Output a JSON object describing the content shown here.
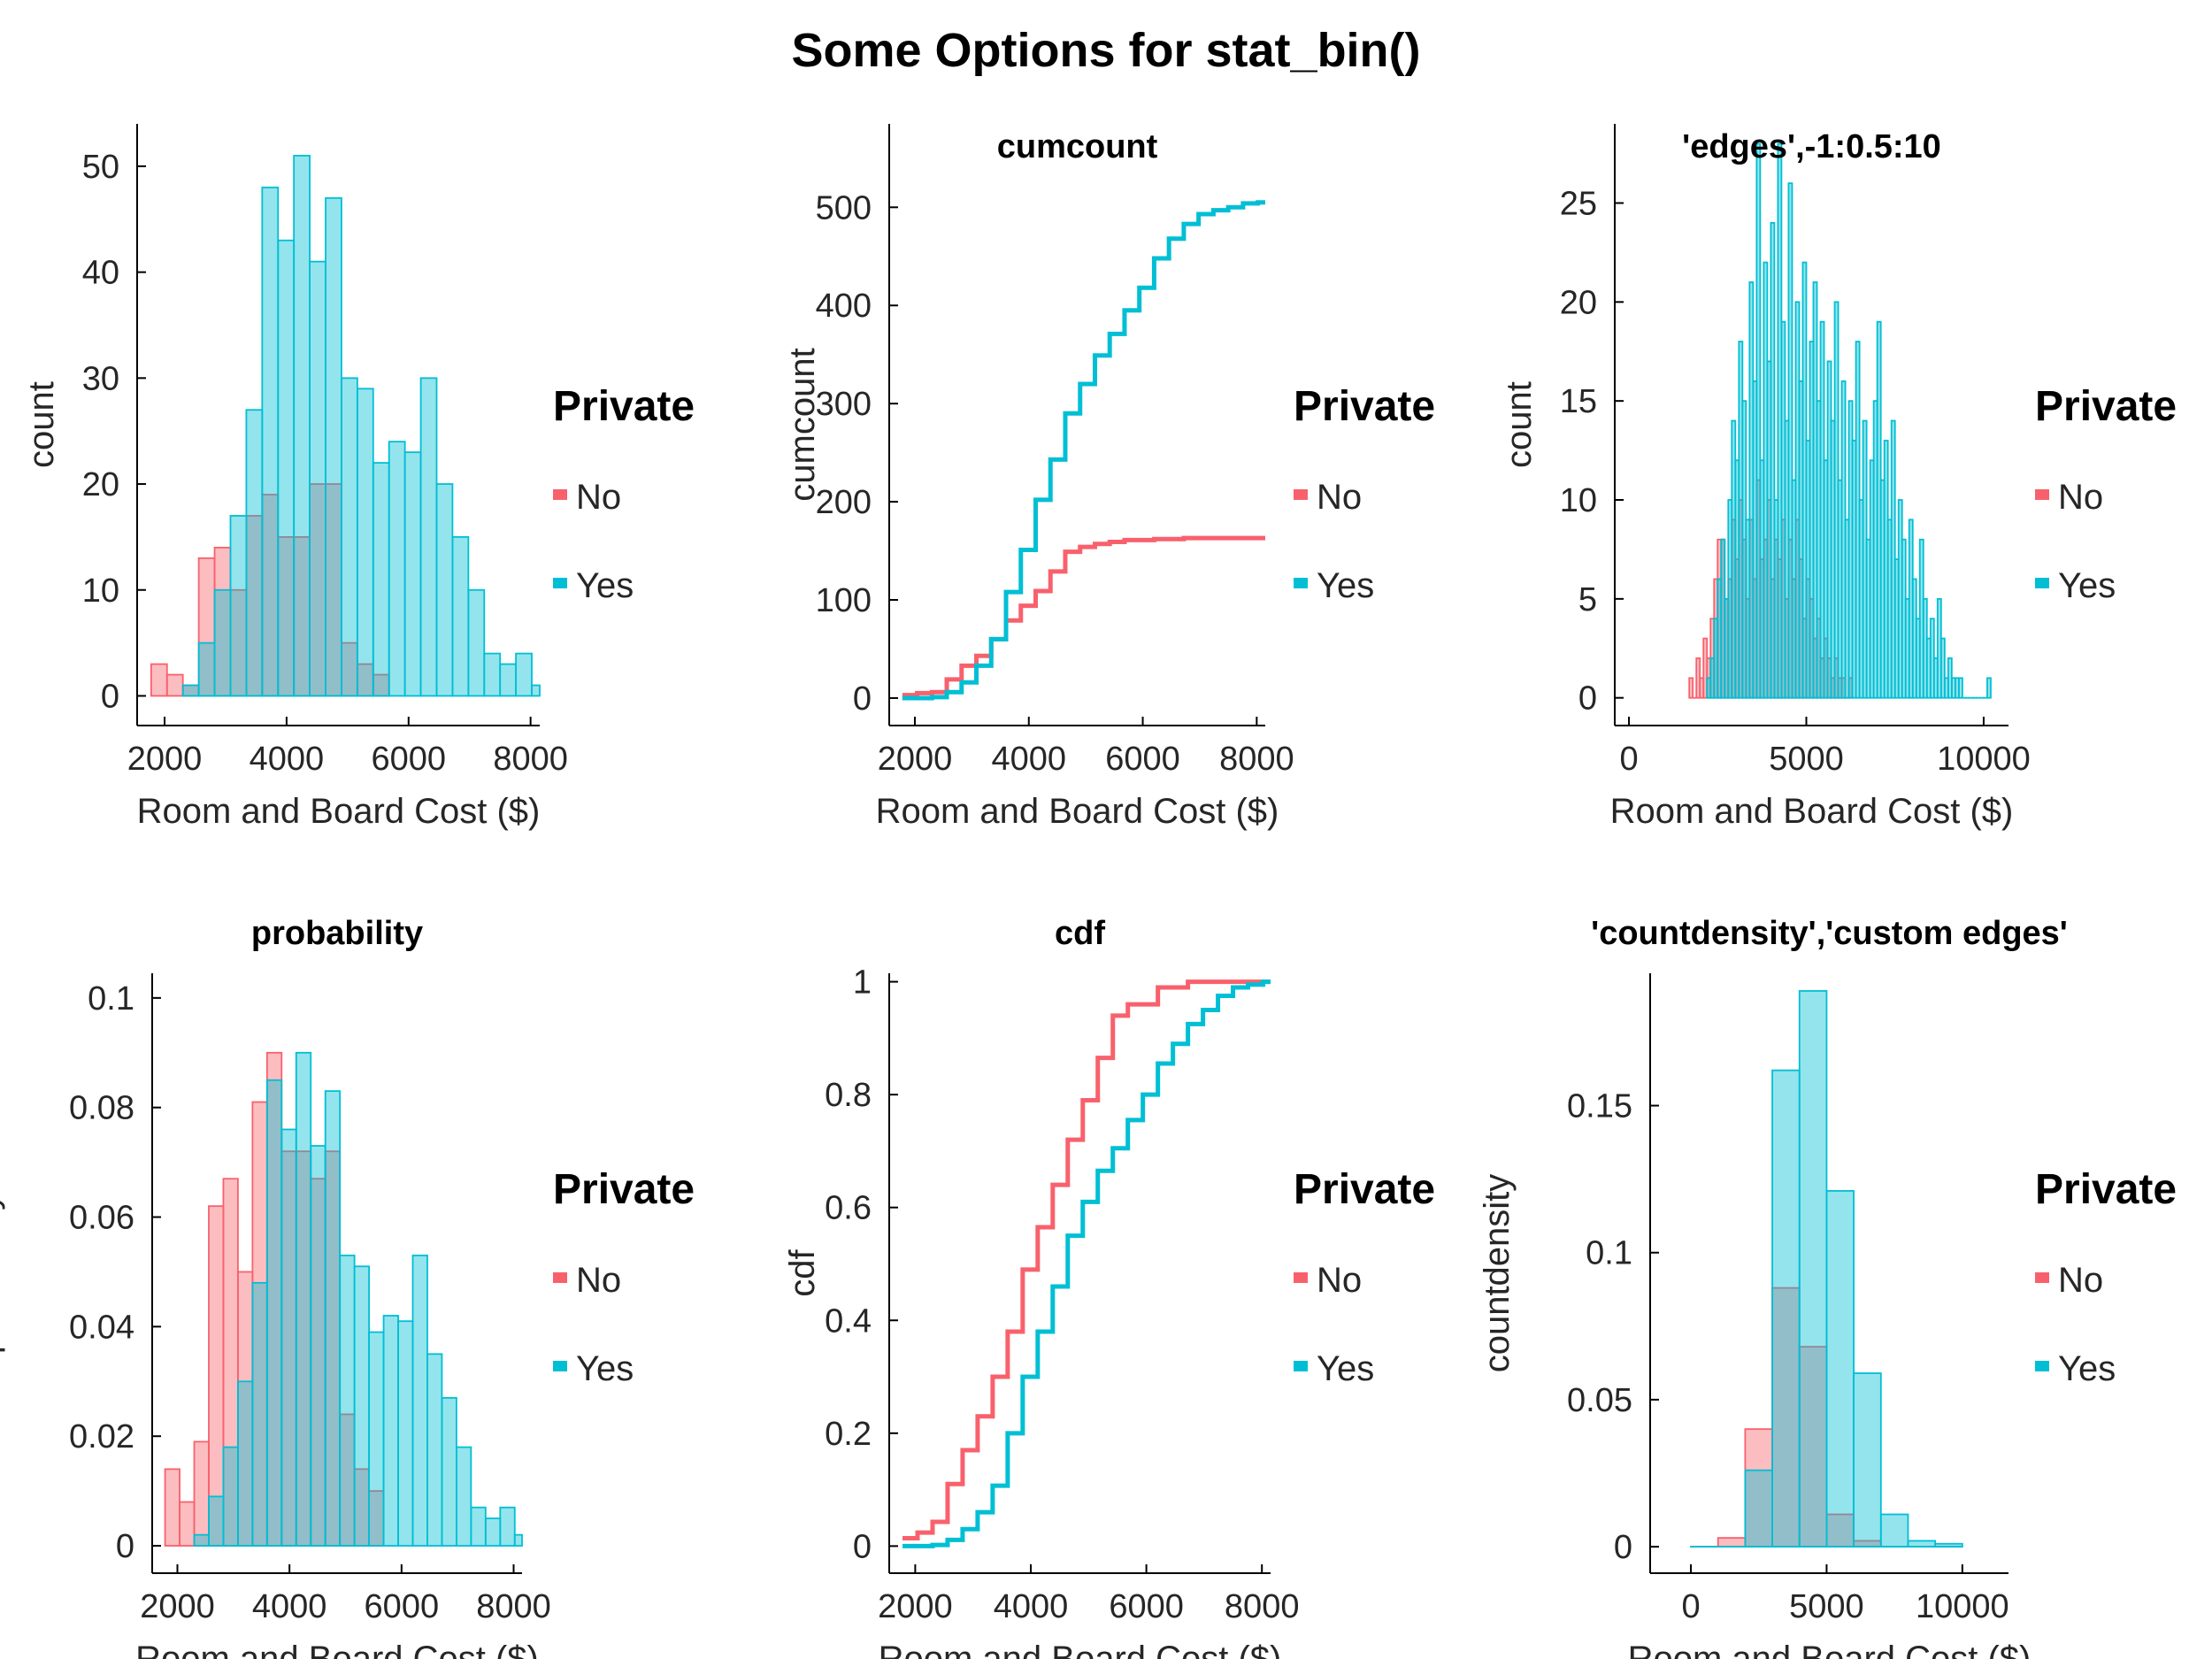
{
  "figure": {
    "title": "Some Options for stat_bin()"
  },
  "colors": {
    "no": "#f8616c",
    "yes": "#00bfd4",
    "axis": "#000000",
    "text": "#262626"
  },
  "chart_data": [
    {
      "type": "bar",
      "subplot": 1,
      "title": "",
      "xlabel": "Room and Board Cost ($)",
      "ylabel": "count",
      "xlim": [
        1550,
        8150
      ],
      "ylim": [
        -2.8,
        54
      ],
      "xticks": [
        2000,
        4000,
        6000,
        8000
      ],
      "yticks": [
        0,
        10,
        20,
        30,
        40,
        50
      ],
      "legend": {
        "title": "Private",
        "entries": [
          "No",
          "Yes"
        ],
        "position": "right"
      },
      "series": [
        {
          "name": "No",
          "type": "histogram",
          "edges": [
            1780,
            2040,
            2300,
            2560,
            2820,
            3080,
            3340,
            3600,
            3860,
            4120,
            4380,
            4640,
            4900,
            5160,
            5420,
            5680
          ],
          "values": [
            3,
            2,
            1,
            13,
            14,
            10,
            17,
            19,
            15,
            15,
            20,
            20,
            5,
            3,
            2
          ]
        },
        {
          "name": "Yes",
          "type": "histogram",
          "edges": [
            2300,
            2560,
            2820,
            3080,
            3340,
            3600,
            3860,
            4120,
            4380,
            4640,
            4900,
            5160,
            5420,
            5680,
            5940,
            6200,
            6460,
            6720,
            6980,
            7240,
            7500,
            7760,
            8020,
            8150
          ],
          "values": [
            1,
            5,
            10,
            17,
            27,
            48,
            43,
            51,
            41,
            47,
            30,
            29,
            22,
            24,
            23,
            30,
            20,
            15,
            10,
            4,
            3,
            4,
            1
          ]
        }
      ]
    },
    {
      "type": "line",
      "subplot": 2,
      "title": "cumcount",
      "xlabel": "Room and Board Cost ($)",
      "ylabel": "cumcount",
      "xlim": [
        1550,
        8150
      ],
      "ylim": [
        -28,
        585
      ],
      "xticks": [
        2000,
        4000,
        6000,
        8000
      ],
      "yticks": [
        0,
        100,
        200,
        300,
        400,
        500
      ],
      "legend": {
        "title": "Private",
        "entries": [
          "No",
          "Yes"
        ],
        "position": "right"
      },
      "series": [
        {
          "name": "No",
          "type": "step",
          "x": [
            1780,
            2040,
            2300,
            2560,
            2820,
            3080,
            3340,
            3600,
            3860,
            4120,
            4380,
            4640,
            4900,
            5160,
            5420,
            5680,
            6200,
            6720,
            8150
          ],
          "y": [
            3,
            5,
            6,
            19,
            33,
            43,
            60,
            79,
            94,
            109,
            129,
            149,
            154,
            157,
            159,
            161,
            162,
            163,
            163
          ]
        },
        {
          "name": "Yes",
          "type": "step",
          "x": [
            1780,
            2300,
            2560,
            2820,
            3080,
            3340,
            3600,
            3860,
            4120,
            4380,
            4640,
            4900,
            5160,
            5420,
            5680,
            5940,
            6200,
            6460,
            6720,
            6980,
            7240,
            7500,
            7760,
            8020,
            8150
          ],
          "y": [
            0,
            1,
            6,
            16,
            33,
            60,
            108,
            151,
            202,
            243,
            290,
            320,
            349,
            371,
            395,
            418,
            448,
            468,
            483,
            493,
            497,
            500,
            504,
            505,
            505
          ]
        }
      ]
    },
    {
      "type": "bar",
      "subplot": 3,
      "title": "'edges',-1:0.5:10",
      "xlabel": "Room and Board Cost ($)",
      "ylabel": "count",
      "xlim": [
        -400,
        10700
      ],
      "ylim": [
        -1.4,
        29
      ],
      "xticks": [
        0,
        5000,
        10000
      ],
      "yticks": [
        0,
        5,
        10,
        15,
        20,
        25
      ],
      "legend": {
        "title": "Private",
        "entries": [
          "No",
          "Yes"
        ],
        "position": "right"
      },
      "series": [
        {
          "name": "No",
          "type": "histogram",
          "x0": 1700,
          "width": 100,
          "values": [
            1,
            0,
            2,
            1,
            3,
            2,
            4,
            6,
            8,
            8,
            5,
            6,
            9,
            7,
            10,
            8,
            5,
            9,
            6,
            11,
            7,
            8,
            10,
            6,
            8,
            7,
            9,
            5,
            8,
            6,
            9,
            7,
            4,
            6,
            5,
            3,
            4,
            2,
            3,
            2,
            1,
            2,
            1,
            1,
            0,
            1
          ]
        },
        {
          "name": "Yes",
          "type": "histogram",
          "x0": 2200,
          "width": 100,
          "values": [
            1,
            2,
            4,
            6,
            8,
            5,
            10,
            14,
            12,
            18,
            15,
            9,
            21,
            16,
            28,
            12,
            22,
            17,
            24,
            10,
            28,
            19,
            14,
            26,
            11,
            20,
            16,
            22,
            13,
            18,
            21,
            15,
            19,
            12,
            17,
            14,
            20,
            11,
            16,
            9,
            15,
            13,
            18,
            10,
            14,
            8,
            12,
            15,
            19,
            11,
            13,
            9,
            14,
            7,
            10,
            8,
            5,
            9,
            6,
            4,
            8,
            5,
            3,
            4,
            2,
            5,
            3,
            1,
            2,
            1,
            1,
            1,
            0,
            0,
            0,
            0,
            0,
            0,
            0,
            1
          ]
        }
      ]
    },
    {
      "type": "bar",
      "subplot": 4,
      "title": "probability",
      "xlabel": "Room and Board Cost ($)",
      "ylabel": "probability",
      "xlim": [
        1550,
        8150
      ],
      "ylim": [
        -0.005,
        0.1045
      ],
      "xticks": [
        2000,
        4000,
        6000,
        8000
      ],
      "yticks": [
        0,
        0.02,
        0.04,
        0.06,
        0.08,
        0.1
      ],
      "legend": {
        "title": "Private",
        "entries": [
          "No",
          "Yes"
        ],
        "position": "right"
      },
      "series": [
        {
          "name": "No",
          "type": "histogram",
          "edges": [
            1780,
            2040,
            2300,
            2560,
            2820,
            3080,
            3340,
            3600,
            3860,
            4120,
            4380,
            4640,
            4900,
            5160,
            5420,
            5680
          ],
          "values": [
            0.014,
            0.008,
            0.019,
            0.062,
            0.067,
            0.05,
            0.081,
            0.09,
            0.072,
            0.072,
            0.067,
            0.072,
            0.024,
            0.014,
            0.01
          ]
        },
        {
          "name": "Yes",
          "type": "histogram",
          "edges": [
            2300,
            2560,
            2820,
            3080,
            3340,
            3600,
            3860,
            4120,
            4380,
            4640,
            4900,
            5160,
            5420,
            5680,
            5940,
            6200,
            6460,
            6720,
            6980,
            7240,
            7500,
            7760,
            8020,
            8150
          ],
          "values": [
            0.002,
            0.009,
            0.018,
            0.03,
            0.048,
            0.085,
            0.076,
            0.09,
            0.073,
            0.083,
            0.053,
            0.051,
            0.039,
            0.042,
            0.041,
            0.053,
            0.035,
            0.027,
            0.018,
            0.007,
            0.005,
            0.007,
            0.002
          ]
        }
      ]
    },
    {
      "type": "line",
      "subplot": 5,
      "title": "cdf",
      "xlabel": "Room and Board Cost ($)",
      "ylabel": "cdf",
      "xlim": [
        1550,
        8150
      ],
      "ylim": [
        -0.048,
        1.015
      ],
      "xticks": [
        2000,
        4000,
        6000,
        8000
      ],
      "yticks": [
        0,
        0.2,
        0.4,
        0.6,
        0.8,
        1
      ],
      "legend": {
        "title": "Private",
        "entries": [
          "No",
          "Yes"
        ],
        "position": "right"
      },
      "series": [
        {
          "name": "No",
          "type": "step",
          "x": [
            1780,
            2040,
            2300,
            2560,
            2820,
            3080,
            3340,
            3600,
            3860,
            4120,
            4380,
            4640,
            4900,
            5160,
            5420,
            5680,
            6200,
            6720,
            8150
          ],
          "y": [
            0.014,
            0.024,
            0.043,
            0.11,
            0.17,
            0.23,
            0.3,
            0.38,
            0.49,
            0.565,
            0.64,
            0.72,
            0.79,
            0.865,
            0.94,
            0.96,
            0.99,
            1.0,
            1.0
          ]
        },
        {
          "name": "Yes",
          "type": "step",
          "x": [
            1780,
            2300,
            2560,
            2820,
            3080,
            3340,
            3600,
            3860,
            4120,
            4380,
            4640,
            4900,
            5160,
            5420,
            5680,
            5940,
            6200,
            6460,
            6720,
            6980,
            7240,
            7500,
            7760,
            8020,
            8150
          ],
          "y": [
            0.0,
            0.002,
            0.011,
            0.03,
            0.06,
            0.107,
            0.2,
            0.3,
            0.38,
            0.46,
            0.55,
            0.61,
            0.665,
            0.705,
            0.755,
            0.8,
            0.855,
            0.89,
            0.925,
            0.95,
            0.975,
            0.99,
            0.995,
            1.0,
            1.0
          ]
        }
      ]
    },
    {
      "type": "bar",
      "subplot": 6,
      "title": "'countdensity','custom edges'",
      "xlabel": "Room and Board Cost ($)",
      "ylabel": "countdensity",
      "xlim": [
        -1500,
        11700
      ],
      "ylim": [
        -0.009,
        0.195
      ],
      "xticks": [
        0,
        5000,
        10000
      ],
      "yticks": [
        0,
        0.05,
        0.1,
        0.15
      ],
      "legend": {
        "title": "Private",
        "entries": [
          "No",
          "Yes"
        ],
        "position": "right"
      },
      "series": [
        {
          "name": "No",
          "type": "histogram",
          "edges": [
            0,
            1000,
            2000,
            3000,
            4000,
            5000,
            6000,
            7000,
            8000,
            9000,
            10000
          ],
          "values": [
            0,
            0.003,
            0.04,
            0.088,
            0.068,
            0.011,
            0.002,
            0,
            0,
            0
          ]
        },
        {
          "name": "Yes",
          "type": "histogram",
          "edges": [
            0,
            1000,
            2000,
            3000,
            4000,
            5000,
            6000,
            7000,
            8000,
            9000,
            10000
          ],
          "values": [
            0,
            0,
            0.026,
            0.162,
            0.189,
            0.121,
            0.059,
            0.011,
            0.002,
            0.001
          ]
        }
      ]
    }
  ]
}
